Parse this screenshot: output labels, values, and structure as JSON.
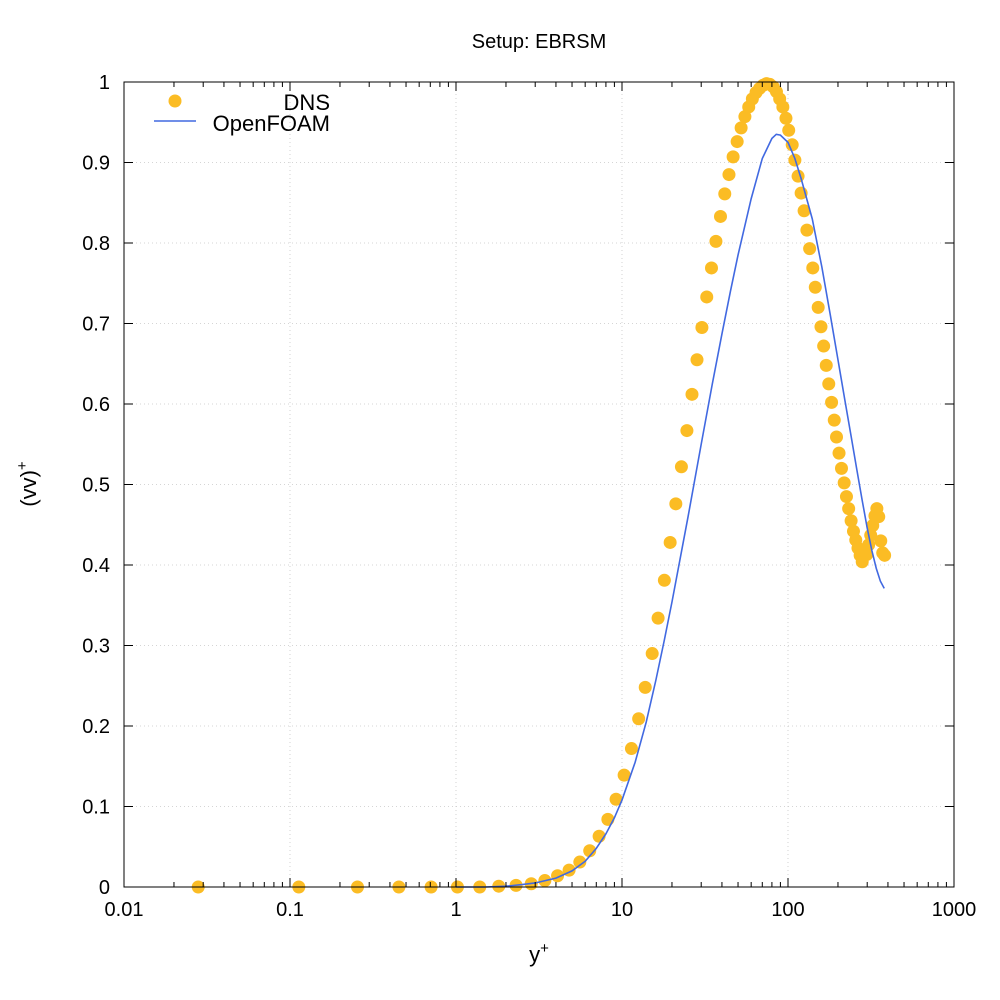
{
  "chart_data": {
    "type": "scatter",
    "title": "Setup: EBRSM",
    "xlabel": "y",
    "xlabel_sup": "+",
    "ylabel": "(vv)",
    "ylabel_sup": "+",
    "x_scale": "log",
    "xlim": [
      0.01,
      1000
    ],
    "ylim": [
      0,
      1
    ],
    "x_ticks": [
      0.01,
      0.1,
      1,
      10,
      100,
      1000
    ],
    "x_tick_labels": [
      "0.01",
      "0.1",
      "1",
      "10",
      "100",
      "1000"
    ],
    "y_ticks": [
      0,
      0.1,
      0.2,
      0.3,
      0.4,
      0.5,
      0.6,
      0.7,
      0.8,
      0.9,
      1
    ],
    "y_tick_labels": [
      "0",
      "0.1",
      "0.2",
      "0.3",
      "0.4",
      "0.5",
      "0.6",
      "0.7",
      "0.8",
      "0.9",
      "1"
    ],
    "grid": true,
    "legend_position": "top-left",
    "series": [
      {
        "name": "DNS",
        "kind": "points",
        "color": "#fbbc24",
        "x": [
          0.028,
          0.113,
          0.255,
          0.453,
          0.708,
          1.02,
          1.39,
          1.81,
          2.3,
          2.84,
          3.43,
          4.09,
          4.8,
          5.57,
          6.39,
          7.28,
          8.22,
          9.21,
          10.3,
          11.4,
          12.6,
          13.8,
          15.2,
          16.5,
          18.0,
          19.5,
          21.1,
          22.8,
          24.6,
          26.4,
          28.3,
          30.3,
          32.4,
          34.6,
          36.8,
          39.2,
          41.6,
          44.1,
          46.7,
          49.4,
          52.2,
          55.0,
          58.0,
          61.0,
          64.2,
          67.4,
          70.8,
          74.2,
          77.8,
          81.4,
          85.2,
          89.1,
          93.1,
          97.2,
          101,
          106,
          110,
          115,
          120,
          125,
          130,
          135,
          141,
          146,
          152,
          158,
          164,
          170,
          176,
          183,
          190,
          196,
          203,
          210,
          218,
          225,
          232,
          240,
          248,
          256,
          264,
          272,
          280,
          289,
          298,
          306,
          315,
          324,
          334,
          343,
          352,
          362,
          372,
          382
        ],
        "y": [
          0.0,
          0.0,
          0.0,
          0.0,
          0.0,
          0.0,
          0.0,
          0.001,
          0.002,
          0.004,
          0.008,
          0.014,
          0.021,
          0.031,
          0.045,
          0.063,
          0.084,
          0.109,
          0.139,
          0.172,
          0.209,
          0.248,
          0.29,
          0.334,
          0.381,
          0.428,
          0.476,
          0.522,
          0.567,
          0.612,
          0.655,
          0.695,
          0.733,
          0.769,
          0.802,
          0.833,
          0.861,
          0.885,
          0.907,
          0.926,
          0.943,
          0.957,
          0.969,
          0.979,
          0.987,
          0.992,
          0.996,
          0.998,
          0.997,
          0.994,
          0.988,
          0.979,
          0.969,
          0.955,
          0.94,
          0.922,
          0.903,
          0.883,
          0.862,
          0.84,
          0.816,
          0.793,
          0.769,
          0.745,
          0.72,
          0.696,
          0.672,
          0.648,
          0.625,
          0.602,
          0.58,
          0.559,
          0.539,
          0.52,
          0.502,
          0.485,
          0.47,
          0.455,
          0.442,
          0.431,
          0.421,
          0.412,
          0.404,
          0.418,
          0.413,
          0.425,
          0.437,
          0.449,
          0.461,
          0.47,
          0.46,
          0.43,
          0.415,
          0.412
        ]
      },
      {
        "name": "OpenFOAM",
        "kind": "line",
        "color": "#4169e1",
        "x": [
          1.0,
          1.5,
          2.0,
          2.5,
          3.0,
          4.0,
          5.0,
          6.0,
          7.0,
          8.0,
          9.0,
          10.0,
          12.0,
          14.0,
          16.0,
          18.0,
          20.0,
          25.0,
          30.0,
          35.0,
          40.0,
          45.0,
          50.0,
          60.0,
          70.0,
          80.0,
          85.0,
          90.0,
          100.0,
          110.0,
          120.0,
          140.0,
          160.0,
          180.0,
          200.0,
          220.0,
          240.0,
          260.0,
          280.0,
          300.0,
          320.0,
          340.0,
          360.0,
          380.0
        ],
        "y": [
          0.0,
          0.0,
          0.001,
          0.003,
          0.005,
          0.011,
          0.02,
          0.032,
          0.048,
          0.066,
          0.086,
          0.108,
          0.155,
          0.205,
          0.257,
          0.307,
          0.354,
          0.46,
          0.55,
          0.625,
          0.687,
          0.74,
          0.785,
          0.855,
          0.905,
          0.93,
          0.935,
          0.934,
          0.925,
          0.905,
          0.88,
          0.83,
          0.77,
          0.71,
          0.655,
          0.605,
          0.56,
          0.518,
          0.48,
          0.446,
          0.418,
          0.396,
          0.38,
          0.371
        ]
      }
    ]
  }
}
